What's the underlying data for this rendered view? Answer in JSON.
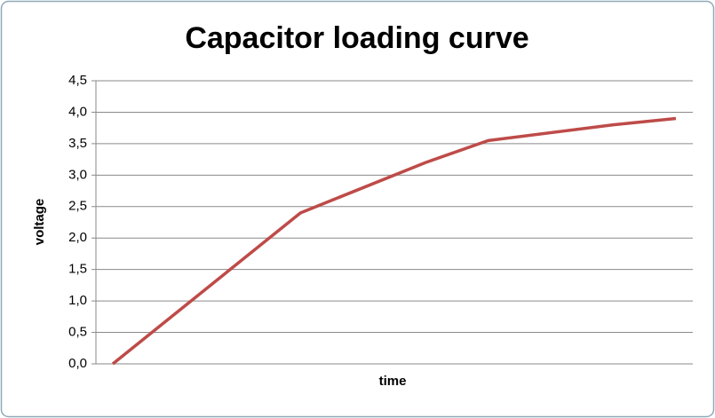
{
  "chart_data": {
    "type": "line",
    "title": "Capacitor loading curve",
    "x_label": "time",
    "y_label": "voltage",
    "x": [
      0,
      3,
      5,
      6,
      8,
      9
    ],
    "series": [
      {
        "name": "voltage",
        "color": "#be4b48",
        "values": [
          0,
          2.4,
          3.2,
          3.55,
          3.8,
          3.9
        ]
      }
    ],
    "xlim": [
      -0.27,
      9.27
    ],
    "ylim": [
      0,
      4.5
    ],
    "yticks": [
      {
        "value": 0,
        "label": "0,0"
      },
      {
        "value": 0.5,
        "label": "0,5"
      },
      {
        "value": 1,
        "label": "1,0"
      },
      {
        "value": 1.5,
        "label": "1,5"
      },
      {
        "value": 2,
        "label": "2,0"
      },
      {
        "value": 2.5,
        "label": "2,5"
      },
      {
        "value": 3,
        "label": "3,0"
      },
      {
        "value": 3.5,
        "label": "3,5"
      },
      {
        "value": 4,
        "label": "4,0"
      },
      {
        "value": 4.5,
        "label": "4,5"
      }
    ],
    "grid": true
  }
}
